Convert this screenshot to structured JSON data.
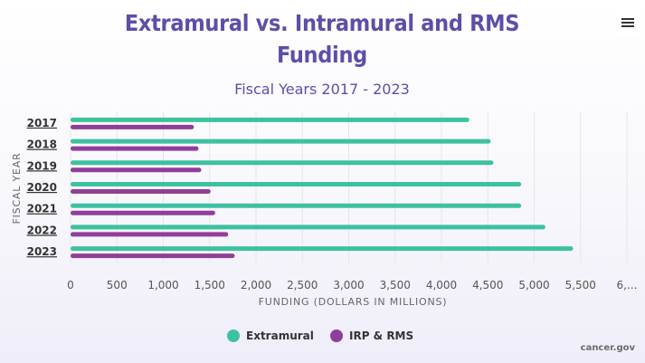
{
  "credit": "cancer.gov",
  "colors": {
    "extramural": "#3ec1a0",
    "irp_rms": "#8e3f9a",
    "title": "#5c4fa8"
  },
  "menu_icon": "hamburger-menu-icon",
  "chart_data": {
    "type": "bar",
    "orientation": "horizontal",
    "title": "Extramural vs. Intramural and RMS Funding",
    "subtitle": "Fiscal Years 2017 - 2023",
    "xlabel": "FUNDING (DOLLARS IN MILLIONS)",
    "ylabel": "FISCAL YEAR",
    "categories": [
      "2017",
      "2018",
      "2019",
      "2020",
      "2021",
      "2022",
      "2023"
    ],
    "series": [
      {
        "name": "Extramural",
        "color": "#3ec1a0",
        "values": [
          4300,
          4530,
          4560,
          4860,
          4860,
          5120,
          5420
        ]
      },
      {
        "name": "IRP & RMS",
        "color": "#8e3f9a",
        "values": [
          1330,
          1380,
          1410,
          1510,
          1560,
          1700,
          1770
        ]
      }
    ],
    "xlim": [
      0,
      6000
    ],
    "xticks": [
      "0",
      "500",
      "1,000",
      "1,500",
      "2,000",
      "2,500",
      "3,000",
      "3,500",
      "4,000",
      "4,500",
      "5,000",
      "5,500",
      "6,..."
    ],
    "grid": true,
    "legend": "bottom-center"
  }
}
